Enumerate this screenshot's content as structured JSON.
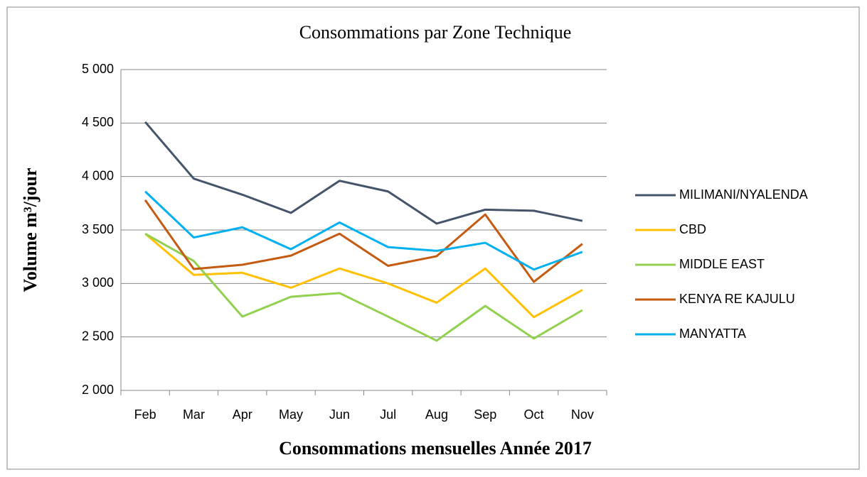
{
  "chart_data": {
    "type": "line",
    "title": "Consommations par Zone Technique",
    "x_label": "Consommations mensuelles Année 2017",
    "y_label": "Volume m³/jour",
    "categories": [
      "Feb",
      "Mar",
      "Apr",
      "May",
      "Jun",
      "Jul",
      "Aug",
      "Sep",
      "Oct",
      "Nov"
    ],
    "series": [
      {
        "name": "MILIMANI/NYALENDA",
        "color": "#44546a",
        "values": [
          4510,
          3980,
          3830,
          3660,
          3960,
          3860,
          3560,
          3690,
          3680,
          3585
        ]
      },
      {
        "name": "CBD",
        "color": "#ffc000",
        "values": [
          3465,
          3080,
          3100,
          2960,
          3140,
          3000,
          2820,
          3140,
          2685,
          2940
        ]
      },
      {
        "name": "MIDDLE EAST",
        "color": "#92d050",
        "values": [
          3465,
          3210,
          2690,
          2875,
          2910,
          2690,
          2465,
          2790,
          2485,
          2750
        ]
      },
      {
        "name": "KENYA RE KAJULU",
        "color": "#c55a11",
        "values": [
          3780,
          3135,
          3175,
          3260,
          3465,
          3165,
          3255,
          3645,
          3015,
          3370
        ]
      },
      {
        "name": "MANYATTA",
        "color": "#00b0f0",
        "values": [
          3860,
          3430,
          3525,
          3320,
          3570,
          3340,
          3305,
          3380,
          3130,
          3295
        ]
      }
    ],
    "ylim": [
      2000,
      5000
    ],
    "yticks": [
      {
        "value": 2000,
        "label": "2 000"
      },
      {
        "value": 2500,
        "label": "2 500"
      },
      {
        "value": 3000,
        "label": "3 000"
      },
      {
        "value": 3500,
        "label": "3 500"
      },
      {
        "value": 4000,
        "label": "4 000"
      },
      {
        "value": 4500,
        "label": "4 500"
      },
      {
        "value": 5000,
        "label": "5 000"
      }
    ],
    "grid": true,
    "legend": "right"
  }
}
